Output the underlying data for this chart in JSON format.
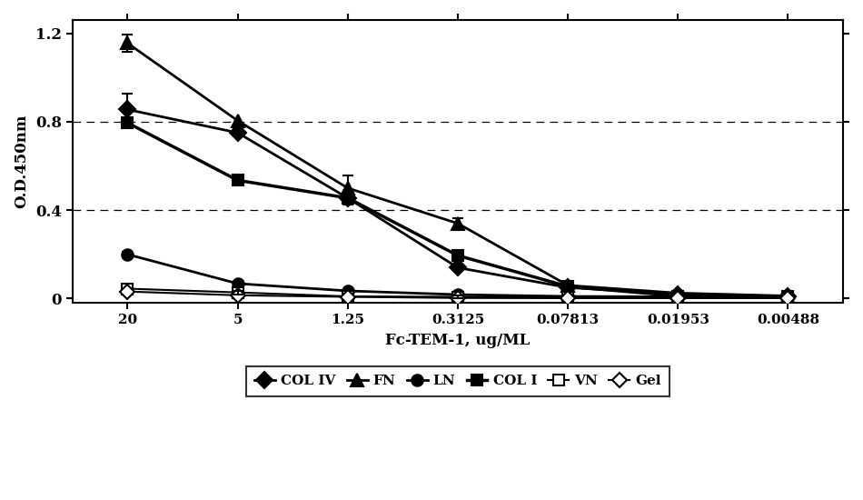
{
  "x_labels": [
    "20",
    "5",
    "1.25",
    "0.3125",
    "0.07813",
    "0.01953",
    "0.00488"
  ],
  "x_positions": [
    0,
    1,
    2,
    3,
    4,
    5,
    6
  ],
  "series": {
    "COL IV": {
      "y": [
        0.855,
        0.75,
        0.455,
        0.14,
        0.05,
        0.02,
        0.01
      ],
      "yerr": [
        0.07,
        0.0,
        0.0,
        0.0,
        0.0,
        0.0,
        0.0
      ],
      "marker": "D",
      "fillstyle": "full",
      "linewidth": 2.0
    },
    "FN": {
      "y": [
        1.155,
        0.805,
        0.5,
        0.34,
        0.06,
        0.025,
        0.012
      ],
      "yerr": [
        0.04,
        0.0,
        0.055,
        0.025,
        0.0,
        0.0,
        0.0
      ],
      "marker": "^",
      "fillstyle": "full",
      "linewidth": 2.0
    },
    "LN": {
      "y": [
        0.2,
        0.068,
        0.035,
        0.018,
        0.01,
        0.008,
        0.008
      ],
      "yerr": [
        0.012,
        0.0,
        0.0,
        0.0,
        0.0,
        0.0,
        0.0
      ],
      "marker": "o",
      "fillstyle": "full",
      "linewidth": 2.0
    },
    "COL I": {
      "y": [
        0.795,
        0.535,
        0.455,
        0.195,
        0.055,
        0.012,
        0.01
      ],
      "yerr": [
        0.0,
        0.0,
        0.03,
        0.02,
        0.0,
        0.0,
        0.0
      ],
      "marker": "s",
      "fillstyle": "full",
      "linewidth": 2.5
    },
    "VN": {
      "y": [
        0.045,
        0.028,
        0.01,
        0.008,
        0.005,
        0.003,
        0.002
      ],
      "yerr": [
        0.0,
        0.008,
        0.0,
        0.005,
        0.0,
        0.0,
        0.0
      ],
      "marker": "s",
      "fillstyle": "none",
      "linewidth": 1.5
    },
    "Gel": {
      "y": [
        0.032,
        0.015,
        0.008,
        0.003,
        0.002,
        0.002,
        0.002
      ],
      "yerr": [
        0.0,
        0.0,
        0.0,
        0.0,
        0.0,
        0.0,
        0.0
      ],
      "marker": "D",
      "fillstyle": "none",
      "linewidth": 1.5
    }
  },
  "xlabel": "Fc-TEM-1, ug/ML",
  "ylabel": "O.D.450nm",
  "ylim": [
    -0.02,
    1.26
  ],
  "yticks": [
    0.0,
    0.4,
    0.8,
    1.2
  ],
  "background_color": "#ffffff",
  "legend_order": [
    "COL IV",
    "FN",
    "LN",
    "COL I",
    "VN",
    "Gel"
  ],
  "marker_sizes": {
    "COL IV": 9,
    "FN": 10,
    "LN": 9,
    "COL I": 9,
    "VN": 9,
    "Gel": 8
  }
}
